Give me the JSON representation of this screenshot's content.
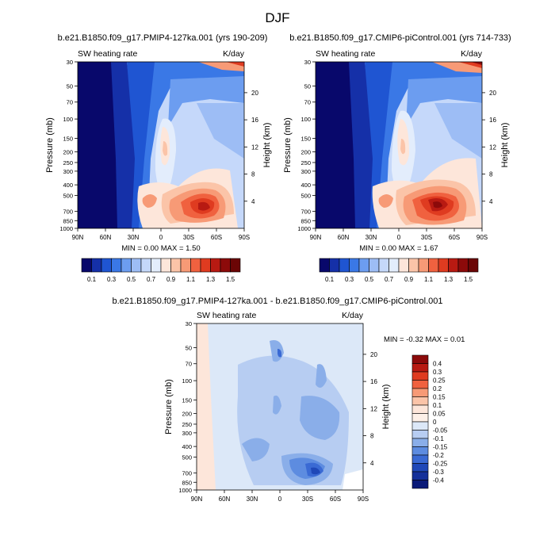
{
  "figure": {
    "title": "DJF",
    "diff_title": "b.e21.B1850.f09_g17.PMIP4-127ka.001 - b.e21.B1850.f09_g17.CMIP6-piControl.001"
  },
  "chart_data": [
    {
      "type": "heatmap",
      "title": "b.e21.B1850.f09_g17.PMIP4-127ka.001 (yrs 190-209)",
      "left_label": "SW heating rate",
      "right_label": "K/day",
      "ylabel": "Pressure (mb)",
      "y2label": "Height (km)",
      "x_ticks": [
        "90N",
        "60N",
        "30N",
        "0",
        "30S",
        "60S",
        "90S"
      ],
      "y_ticks": [
        "30",
        "50",
        "70",
        "100",
        "150",
        "200",
        "250",
        "300",
        "400",
        "500",
        "700",
        "850",
        "1000"
      ],
      "y2_ticks": [
        "20",
        "16",
        "12",
        "8",
        "4"
      ],
      "min": "0.00",
      "max": "1.50",
      "stats_text": "MIN =   0.00   MAX =   1.50",
      "ylim": [
        30,
        1000
      ],
      "xlim": [
        90,
        -90
      ],
      "colorbar_labels": [
        "0.1",
        "0.3",
        "0.5",
        "0.7",
        "0.9",
        "1.1",
        "1.3",
        "1.5"
      ],
      "colorbar_colors": [
        "#08086b",
        "#1530a8",
        "#1f55d2",
        "#3a78e6",
        "#6c9df0",
        "#9dbdf5",
        "#c5d8fa",
        "#e3edfc",
        "#fde6da",
        "#fbc4a8",
        "#f79a76",
        "#f0613f",
        "#df3b20",
        "#b81a12",
        "#8c0a0a",
        "#6b0505"
      ]
    },
    {
      "type": "heatmap",
      "title": "b.e21.B1850.f09_g17.CMIP6-piControl.001 (yrs 714-733)",
      "left_label": "SW heating rate",
      "right_label": "K/day",
      "ylabel": "Pressure (mb)",
      "y2label": "Height (km)",
      "x_ticks": [
        "90N",
        "60N",
        "30N",
        "0",
        "30S",
        "60S",
        "90S"
      ],
      "y_ticks": [
        "30",
        "50",
        "70",
        "100",
        "150",
        "200",
        "250",
        "300",
        "400",
        "500",
        "700",
        "850",
        "1000"
      ],
      "y2_ticks": [
        "20",
        "16",
        "12",
        "8",
        "4"
      ],
      "min": "0.00",
      "max": "1.67",
      "stats_text": "MIN =   0.00   MAX =   1.67",
      "ylim": [
        30,
        1000
      ],
      "xlim": [
        90,
        -90
      ],
      "colorbar_labels": [
        "0.1",
        "0.3",
        "0.5",
        "0.7",
        "0.9",
        "1.1",
        "1.3",
        "1.5"
      ],
      "colorbar_colors": [
        "#08086b",
        "#1530a8",
        "#1f55d2",
        "#3a78e6",
        "#6c9df0",
        "#9dbdf5",
        "#c5d8fa",
        "#e3edfc",
        "#fde6da",
        "#fbc4a8",
        "#f79a76",
        "#f0613f",
        "#df3b20",
        "#b81a12",
        "#8c0a0a",
        "#6b0505"
      ]
    },
    {
      "type": "heatmap",
      "title": "b.e21.B1850.f09_g17.PMIP4-127ka.001 - b.e21.B1850.f09_g17.CMIP6-piControl.001",
      "left_label": "SW heating rate",
      "right_label": "K/day",
      "ylabel": "Pressure (mb)",
      "y2label": "Height (km)",
      "x_ticks": [
        "90N",
        "60N",
        "30N",
        "0",
        "30S",
        "60S",
        "90S"
      ],
      "y_ticks": [
        "30",
        "50",
        "70",
        "100",
        "150",
        "200",
        "250",
        "300",
        "400",
        "500",
        "700",
        "850",
        "1000"
      ],
      "y2_ticks": [
        "20",
        "16",
        "12",
        "8",
        "4"
      ],
      "min": "-0.32",
      "max": "0.01",
      "stats_text": "MIN =  -0.32  MAX =   0.01",
      "ylim": [
        30,
        1000
      ],
      "xlim": [
        90,
        -90
      ],
      "colorbar_labels": [
        "0.4",
        "0.3",
        "0.25",
        "0.2",
        "0.15",
        "0.1",
        "0.05",
        "0",
        "-0.05",
        "-0.1",
        "-0.15",
        "-0.2",
        "-0.25",
        "-0.3",
        "-0.4"
      ],
      "colorbar_colors": [
        "#8c0a0a",
        "#b81a12",
        "#df3b20",
        "#f0613f",
        "#f79a76",
        "#fbc4a8",
        "#fde6da",
        "#fdf0e8",
        "#dce8f8",
        "#b7cdf2",
        "#8aaee9",
        "#5d8ce0",
        "#3a6ad4",
        "#1f48b8",
        "#14309a",
        "#0a1a78"
      ]
    }
  ]
}
